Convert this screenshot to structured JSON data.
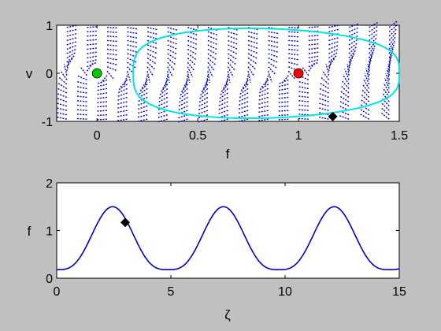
{
  "chart_data": [
    {
      "type": "phase-portrait",
      "xlabel": "f",
      "ylabel": "v",
      "xlim": [
        -0.2,
        1.5
      ],
      "ylim": [
        -1,
        1
      ],
      "xticks": [
        "0",
        "0.5",
        "1",
        "1.5"
      ],
      "yticks": [
        "-1",
        "0",
        "1"
      ],
      "grid": false,
      "colors": {
        "vectors": "#0000cc",
        "orbit": "#00e5e5",
        "fixed_left": "#00cc00",
        "fixed_right": "#ff0000",
        "marker": "#000000"
      },
      "fixed_points": [
        {
          "f": 0,
          "v": 0,
          "color": "#00cc00"
        },
        {
          "f": 1,
          "v": 0,
          "color": "#ff0000"
        }
      ],
      "orbit": {
        "f_min": 0.18,
        "f_max": 1.5,
        "v_max": 0.93,
        "v_min": -0.93
      },
      "marker": {
        "f": 1.17,
        "v": -0.9
      }
    },
    {
      "type": "line",
      "xlabel": "ζ",
      "ylabel": "f",
      "xlim": [
        0,
        15
      ],
      "ylim": [
        0,
        2
      ],
      "xticks": [
        "0",
        "5",
        "10",
        "15"
      ],
      "yticks": [
        "0",
        "1",
        "2"
      ],
      "grid": false,
      "series": [
        {
          "period": 4.85,
          "min": 0.18,
          "max": 1.5,
          "first_peak_x": 2.45,
          "color": "#0000cc"
        }
      ],
      "marker": {
        "x": 3.0,
        "y": 1.17
      }
    }
  ]
}
